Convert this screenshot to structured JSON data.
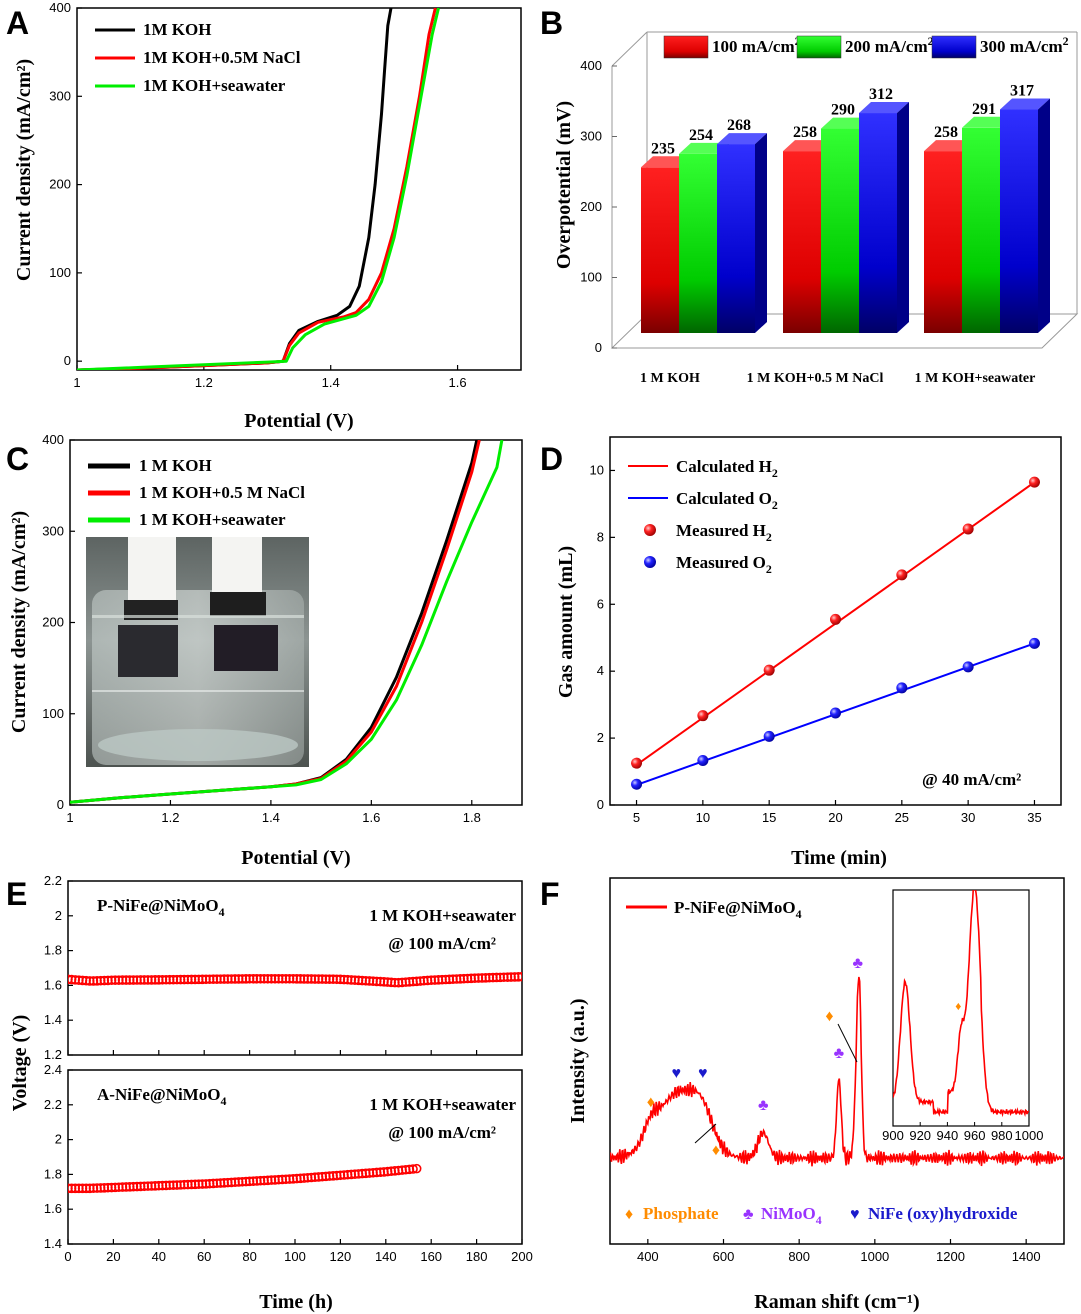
{
  "panels": {
    "A": {
      "letter": "A"
    },
    "B": {
      "letter": "B"
    },
    "C": {
      "letter": "C"
    },
    "D": {
      "letter": "D"
    },
    "E": {
      "letter": "E"
    },
    "F": {
      "letter": "F"
    }
  },
  "chart_data": [
    {
      "panel": "A",
      "type": "line",
      "xlabel": "Potential (V)",
      "ylabel": "Current density (mA/cm²)",
      "xlim": [
        1.0,
        1.7
      ],
      "ylim": [
        -10,
        400
      ],
      "xticks": [
        1.0,
        1.2,
        1.4,
        1.6
      ],
      "yticks": [
        0,
        100,
        200,
        300,
        400
      ],
      "legend": "top-left",
      "series": [
        {
          "name": "1M KOH",
          "color": "#000000",
          "x": [
            1.0,
            1.1,
            1.2,
            1.3,
            1.325,
            1.335,
            1.35,
            1.38,
            1.41,
            1.43,
            1.445,
            1.46,
            1.47,
            1.48,
            1.485,
            1.49,
            1.495
          ],
          "y": [
            -10,
            -8,
            -5,
            -2,
            0,
            20,
            35,
            45,
            52,
            62,
            85,
            140,
            200,
            280,
            330,
            380,
            400
          ]
        },
        {
          "name": "1M KOH+0.5M NaCl",
          "color": "#ff0000",
          "x": [
            1.0,
            1.1,
            1.2,
            1.3,
            1.325,
            1.335,
            1.35,
            1.38,
            1.42,
            1.44,
            1.46,
            1.48,
            1.5,
            1.52,
            1.54,
            1.555,
            1.565
          ],
          "y": [
            -10,
            -8,
            -5,
            -2,
            0,
            18,
            32,
            44,
            50,
            55,
            70,
            100,
            150,
            220,
            300,
            370,
            400
          ]
        },
        {
          "name": "1M KOH+seawater",
          "color": "#00ee00",
          "x": [
            1.0,
            1.1,
            1.2,
            1.3,
            1.33,
            1.34,
            1.36,
            1.39,
            1.42,
            1.44,
            1.46,
            1.48,
            1.5,
            1.52,
            1.54,
            1.56,
            1.57
          ],
          "y": [
            -10,
            -7,
            -4,
            -1,
            0,
            15,
            30,
            42,
            48,
            52,
            62,
            90,
            140,
            210,
            290,
            370,
            400
          ]
        }
      ]
    },
    {
      "panel": "B",
      "type": "bar",
      "xlabel": "",
      "ylabel": "Overpotential (mV)",
      "ylim": [
        0,
        400
      ],
      "yticks": [
        0,
        100,
        200,
        300,
        400
      ],
      "legend": "top",
      "categories": [
        "1 M KOH",
        "1 M KOH+0.5 M NaCl",
        "1 M KOH+seawater"
      ],
      "series": [
        {
          "name": "100 mA/cm",
          "sup": "2",
          "color": "#ff0000",
          "values": [
            235,
            258,
            258
          ]
        },
        {
          "name": "200 mA/cm",
          "sup": "2",
          "color": "#00ee00",
          "values": [
            254,
            290,
            291
          ]
        },
        {
          "name": "300 mA/cm",
          "sup": "2",
          "color": "#0000ff",
          "values": [
            268,
            312,
            317
          ]
        }
      ]
    },
    {
      "panel": "C",
      "type": "line",
      "xlabel": "Potential (V)",
      "ylabel": "Current density (mA/cm²)",
      "xlim": [
        1.0,
        1.9
      ],
      "ylim": [
        0,
        400
      ],
      "xticks": [
        1.0,
        1.2,
        1.4,
        1.6,
        1.8
      ],
      "yticks": [
        0,
        100,
        200,
        300,
        400
      ],
      "legend": "top-left",
      "inset_photo": "beaker-with-electrodes",
      "series": [
        {
          "name": "1 M KOH",
          "color": "#000000",
          "x": [
            1.0,
            1.1,
            1.2,
            1.3,
            1.4,
            1.45,
            1.5,
            1.55,
            1.6,
            1.65,
            1.7,
            1.75,
            1.8,
            1.81
          ],
          "y": [
            3,
            8,
            12,
            16,
            20,
            23,
            30,
            50,
            85,
            140,
            210,
            290,
            375,
            400
          ]
        },
        {
          "name": "1 M KOH+0.5 M NaCl",
          "color": "#ff0000",
          "x": [
            1.0,
            1.1,
            1.2,
            1.3,
            1.4,
            1.45,
            1.5,
            1.55,
            1.6,
            1.65,
            1.7,
            1.75,
            1.8,
            1.815
          ],
          "y": [
            3,
            8,
            12,
            16,
            20,
            23,
            29,
            48,
            80,
            130,
            200,
            280,
            365,
            400
          ]
        },
        {
          "name": "1 M KOH+seawater",
          "color": "#00ee00",
          "x": [
            1.0,
            1.1,
            1.2,
            1.3,
            1.4,
            1.45,
            1.5,
            1.55,
            1.6,
            1.65,
            1.7,
            1.75,
            1.8,
            1.85,
            1.86
          ],
          "y": [
            3,
            8,
            12,
            16,
            20,
            22,
            28,
            45,
            72,
            115,
            175,
            245,
            310,
            370,
            400
          ]
        }
      ]
    },
    {
      "panel": "D",
      "type": "scatter",
      "xlabel": "Time (min)",
      "ylabel": "Gas amount (mL)",
      "xlim": [
        3,
        37
      ],
      "ylim": [
        0,
        11
      ],
      "xticks": [
        5,
        10,
        15,
        20,
        25,
        30,
        35
      ],
      "yticks": [
        0,
        2,
        4,
        6,
        8,
        10
      ],
      "legend": "top-left",
      "annotation": "@ 40 mA/cm²",
      "series": [
        {
          "name": "Calculated H",
          "sub": "2",
          "kind": "line",
          "color": "#ff0000",
          "x": [
            5,
            35
          ],
          "y": [
            1.2,
            9.65
          ]
        },
        {
          "name": "Calculated O",
          "sub": "2",
          "kind": "line",
          "color": "#0000ff",
          "x": [
            5,
            35
          ],
          "y": [
            0.6,
            4.83
          ]
        },
        {
          "name": "Measured H",
          "sub": "2",
          "kind": "points",
          "color": "#ff0000",
          "x": [
            5,
            10,
            15,
            20,
            25,
            30,
            35
          ],
          "y": [
            1.25,
            2.67,
            4.03,
            5.55,
            6.88,
            8.25,
            9.65
          ]
        },
        {
          "name": "Measured O",
          "sub": "2",
          "kind": "points",
          "color": "#0000ff",
          "x": [
            5,
            10,
            15,
            20,
            25,
            30,
            35
          ],
          "y": [
            0.62,
            1.33,
            2.05,
            2.75,
            3.5,
            4.13,
            4.83
          ]
        }
      ]
    },
    {
      "panel": "E",
      "type": "line",
      "xlabel": "Time (h)",
      "ylabel": "Voltage (V)",
      "xlim": [
        0,
        200
      ],
      "xticks": [
        0,
        20,
        40,
        60,
        80,
        100,
        120,
        140,
        160,
        180,
        200
      ],
      "subplots": [
        {
          "name": "P-NiFe@NiMoO",
          "sub": "4",
          "condition1": "1 M KOH+seawater",
          "condition2": "@ 100 mA/cm²",
          "ylim": [
            1.2,
            2.2
          ],
          "yticks": [
            1.2,
            1.4,
            1.6,
            1.8,
            2.0,
            2.2
          ],
          "color": "#ff0000",
          "x": [
            0,
            10,
            20,
            40,
            60,
            80,
            100,
            120,
            140,
            145,
            150,
            160,
            180,
            200
          ],
          "y": [
            1.635,
            1.625,
            1.63,
            1.632,
            1.635,
            1.638,
            1.638,
            1.635,
            1.62,
            1.615,
            1.62,
            1.63,
            1.642,
            1.65
          ]
        },
        {
          "name": "A-NiFe@NiMoO",
          "sub": "4",
          "condition1": "1 M KOH+seawater",
          "condition2": "@ 100 mA/cm²",
          "ylim": [
            1.4,
            2.4
          ],
          "yticks": [
            1.4,
            1.6,
            1.8,
            2.0,
            2.2,
            2.4
          ],
          "color": "#ff0000",
          "x": [
            0,
            10,
            20,
            40,
            60,
            80,
            100,
            120,
            140,
            155
          ],
          "y": [
            1.72,
            1.72,
            1.725,
            1.735,
            1.745,
            1.76,
            1.775,
            1.795,
            1.815,
            1.835
          ]
        }
      ]
    },
    {
      "panel": "F",
      "type": "line",
      "xlabel": "Raman shift (cm⁻¹)",
      "ylabel": "Intensity (a.u.)",
      "xlim": [
        300,
        1500
      ],
      "xticks": [
        400,
        600,
        800,
        1000,
        1200,
        1400
      ],
      "series": [
        {
          "name": "P-NiFe@NiMoO",
          "sub": "4",
          "color": "#ff0000"
        }
      ],
      "peaks": [
        {
          "x": 408,
          "type": "Phosphate"
        },
        {
          "x": 475,
          "type": "NiFe (oxy)hydroxide"
        },
        {
          "x": 545,
          "type": "NiFe (oxy)hydroxide"
        },
        {
          "x": 705,
          "type": "NiMoO4"
        },
        {
          "x": 905,
          "type": "NiMoO4"
        },
        {
          "x": 955,
          "type": "NiMoO4"
        }
      ],
      "legend_items": [
        {
          "symbol": "♦",
          "label": "Phosphate",
          "color": "#ff8c00"
        },
        {
          "symbol": "♣",
          "label": "NiMoO",
          "sub": "4",
          "color": "#9933ff"
        },
        {
          "symbol": "♥",
          "label": "NiFe (oxy)hydroxide",
          "color": "#1a1acc"
        }
      ],
      "inset": {
        "xlim": [
          900,
          1000
        ],
        "xticks": [
          900,
          920,
          940,
          960,
          980,
          1000
        ]
      }
    }
  ]
}
